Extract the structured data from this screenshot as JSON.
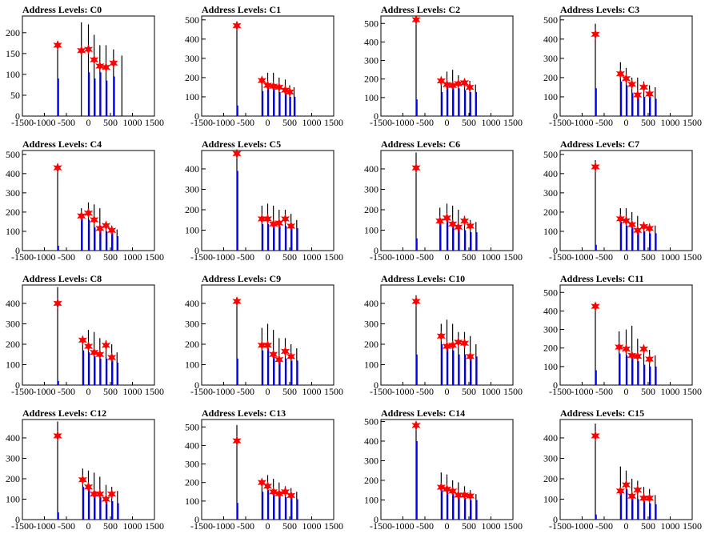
{
  "chart_data": [
    {
      "type": "bar",
      "title": "Address Levels: C0",
      "xlim": [
        -1500,
        1500
      ],
      "ylim": [
        0,
        240
      ],
      "yticks": [
        0,
        50,
        100,
        150,
        200
      ],
      "xticks": [
        -1500,
        -1000,
        -500,
        0,
        500,
        1000,
        1500
      ],
      "x": [
        -700,
        -160,
        0,
        130,
        260,
        400,
        570,
        760
      ],
      "black": [
        160,
        225,
        220,
        195,
        170,
        170,
        160,
        145
      ],
      "blue": [
        90,
        0,
        105,
        90,
        105,
        85,
        95,
        0
      ],
      "stars": [
        170,
        157,
        160,
        135,
        120,
        117,
        127
      ]
    },
    {
      "type": "bar",
      "title": "Address Levels: C1",
      "xlim": [
        -1500,
        1500
      ],
      "ylim": [
        0,
        520
      ],
      "yticks": [
        0,
        100,
        200,
        300,
        400,
        500
      ],
      "xticks": [
        -1500,
        -1000,
        -500,
        0,
        500,
        1000,
        1500
      ],
      "x": [
        -700,
        -130,
        0,
        130,
        260,
        400,
        500,
        600
      ],
      "black": [
        480,
        200,
        225,
        225,
        200,
        190,
        160,
        150
      ],
      "blue": [
        55,
        130,
        150,
        150,
        125,
        120,
        100,
        100
      ],
      "stars": [
        470,
        185,
        160,
        155,
        150,
        135,
        125
      ]
    },
    {
      "type": "bar",
      "title": "Address Levels: C2",
      "xlim": [
        -1500,
        1500
      ],
      "ylim": [
        0,
        540
      ],
      "yticks": [
        0,
        100,
        200,
        300,
        400,
        500
      ],
      "xticks": [
        -1500,
        -1000,
        -500,
        0,
        500,
        1000,
        1500
      ],
      "x": [
        -700,
        -130,
        0,
        130,
        260,
        400,
        520,
        650
      ],
      "black": [
        530,
        200,
        240,
        250,
        220,
        200,
        190,
        170
      ],
      "blue": [
        90,
        130,
        160,
        150,
        150,
        140,
        130,
        130
      ],
      "stars": [
        520,
        190,
        170,
        165,
        175,
        180,
        155
      ]
    },
    {
      "type": "bar",
      "title": "Address Levels: C3",
      "xlim": [
        -1500,
        1500
      ],
      "ylim": [
        0,
        520
      ],
      "yticks": [
        0,
        100,
        200,
        300,
        400,
        500
      ],
      "xticks": [
        -1500,
        -1000,
        -500,
        0,
        500,
        1000,
        1500
      ],
      "x": [
        -700,
        -130,
        0,
        130,
        260,
        400,
        530,
        660
      ],
      "black": [
        480,
        280,
        250,
        200,
        200,
        180,
        160,
        150
      ],
      "blue": [
        145,
        180,
        160,
        120,
        110,
        100,
        100,
        90
      ],
      "stars": [
        425,
        220,
        195,
        165,
        110,
        150,
        115
      ]
    },
    {
      "type": "bar",
      "title": "Address Levels: C4",
      "xlim": [
        -1500,
        1500
      ],
      "ylim": [
        0,
        520
      ],
      "yticks": [
        0,
        100,
        200,
        300,
        400,
        500
      ],
      "xticks": [
        -1500,
        -1000,
        -500,
        0,
        500,
        1000,
        1500
      ],
      "x": [
        -700,
        -160,
        0,
        130,
        260,
        400,
        530,
        650
      ],
      "black": [
        440,
        220,
        250,
        240,
        220,
        140,
        130,
        110
      ],
      "blue": [
        25,
        170,
        160,
        120,
        130,
        100,
        90,
        75
      ],
      "stars": [
        430,
        180,
        195,
        160,
        115,
        130,
        105
      ]
    },
    {
      "type": "bar",
      "title": "Address Levels: C5",
      "xlim": [
        -1500,
        1500
      ],
      "ylim": [
        0,
        490
      ],
      "yticks": [
        0,
        100,
        200,
        300,
        400
      ],
      "xticks": [
        -1500,
        -1000,
        -500,
        0,
        500,
        1000,
        1500
      ],
      "x": [
        -700,
        -130,
        0,
        130,
        260,
        400,
        530,
        660
      ],
      "black": [
        470,
        220,
        230,
        220,
        200,
        200,
        180,
        150
      ],
      "blue": [
        390,
        130,
        130,
        120,
        120,
        120,
        110,
        110
      ],
      "stars": [
        475,
        155,
        155,
        130,
        135,
        155,
        120
      ]
    },
    {
      "type": "bar",
      "title": "Address Levels: C6",
      "xlim": [
        -1500,
        1500
      ],
      "ylim": [
        0,
        490
      ],
      "yticks": [
        0,
        100,
        200,
        300,
        400
      ],
      "xticks": [
        -1500,
        -1000,
        -500,
        0,
        500,
        1000,
        1500
      ],
      "x": [
        -700,
        -160,
        0,
        130,
        260,
        400,
        530,
        660
      ],
      "black": [
        480,
        210,
        230,
        220,
        200,
        170,
        150,
        140
      ],
      "blue": [
        60,
        140,
        160,
        140,
        110,
        100,
        90,
        90
      ],
      "stars": [
        405,
        145,
        160,
        130,
        115,
        145,
        120
      ]
    },
    {
      "type": "bar",
      "title": "Address Levels: C7",
      "xlim": [
        -1500,
        1500
      ],
      "ylim": [
        0,
        520
      ],
      "yticks": [
        0,
        100,
        200,
        300,
        400,
        500
      ],
      "xticks": [
        -1500,
        -1000,
        -500,
        0,
        500,
        1000,
        1500
      ],
      "x": [
        -700,
        -130,
        0,
        130,
        260,
        400,
        530,
        660
      ],
      "black": [
        470,
        220,
        220,
        200,
        180,
        150,
        140,
        130
      ],
      "blue": [
        30,
        150,
        130,
        120,
        100,
        100,
        90,
        90
      ],
      "stars": [
        435,
        165,
        155,
        135,
        105,
        125,
        115
      ]
    },
    {
      "type": "bar",
      "title": "Address Levels: C8",
      "xlim": [
        -1500,
        1500
      ],
      "ylim": [
        0,
        490
      ],
      "yticks": [
        0,
        100,
        200,
        300,
        400
      ],
      "xticks": [
        -1500,
        -1000,
        -500,
        0,
        500,
        1000,
        1500
      ],
      "x": [
        -700,
        -130,
        0,
        130,
        260,
        400,
        530,
        650
      ],
      "black": [
        480,
        230,
        270,
        260,
        230,
        220,
        200,
        160
      ],
      "blue": [
        20,
        170,
        160,
        140,
        130,
        130,
        120,
        110
      ],
      "stars": [
        400,
        220,
        190,
        160,
        150,
        195,
        135
      ]
    },
    {
      "type": "bar",
      "title": "Address Levels: C9",
      "xlim": [
        -1500,
        1500
      ],
      "ylim": [
        0,
        490
      ],
      "yticks": [
        0,
        100,
        200,
        300,
        400
      ],
      "xticks": [
        -1500,
        -1000,
        -500,
        0,
        500,
        1000,
        1500
      ],
      "x": [
        -700,
        -130,
        0,
        130,
        260,
        400,
        530,
        660
      ],
      "black": [
        430,
        280,
        300,
        270,
        230,
        230,
        200,
        180
      ],
      "blue": [
        130,
        170,
        180,
        150,
        130,
        130,
        120,
        120
      ],
      "stars": [
        410,
        195,
        195,
        150,
        125,
        165,
        140
      ]
    },
    {
      "type": "bar",
      "title": "Address Levels: C10",
      "xlim": [
        -1500,
        1500
      ],
      "ylim": [
        0,
        490
      ],
      "yticks": [
        0,
        100,
        200,
        300,
        400
      ],
      "xticks": [
        -1500,
        -1000,
        -500,
        0,
        500,
        1000,
        1500
      ],
      "x": [
        -700,
        -130,
        0,
        130,
        260,
        400,
        530,
        660
      ],
      "black": [
        440,
        300,
        320,
        300,
        260,
        260,
        240,
        200
      ],
      "blue": [
        150,
        200,
        200,
        170,
        150,
        150,
        140,
        140
      ],
      "stars": [
        410,
        240,
        190,
        195,
        210,
        205,
        140
      ]
    },
    {
      "type": "bar",
      "title": "Address Levels: C11",
      "xlim": [
        -1500,
        1500
      ],
      "ylim": [
        0,
        540
      ],
      "yticks": [
        0,
        100,
        200,
        300,
        400,
        500
      ],
      "xticks": [
        -1500,
        -1000,
        -500,
        0,
        500,
        1000,
        1500
      ],
      "x": [
        -700,
        -160,
        0,
        130,
        260,
        400,
        530,
        660
      ],
      "black": [
        440,
        290,
        300,
        320,
        250,
        200,
        190,
        160
      ],
      "blue": [
        80,
        170,
        160,
        160,
        130,
        110,
        100,
        100
      ],
      "stars": [
        425,
        205,
        195,
        160,
        155,
        195,
        140
      ]
    },
    {
      "type": "bar",
      "title": "Address Levels: C12",
      "xlim": [
        -1500,
        1500
      ],
      "ylim": [
        0,
        490
      ],
      "yticks": [
        0,
        100,
        200,
        300,
        400
      ],
      "xticks": [
        -1500,
        -1000,
        -500,
        0,
        500,
        1000,
        1500
      ],
      "x": [
        -700,
        -130,
        0,
        130,
        260,
        400,
        530,
        660
      ],
      "black": [
        480,
        250,
        240,
        230,
        210,
        170,
        160,
        140
      ],
      "blue": [
        35,
        160,
        150,
        140,
        110,
        100,
        90,
        80
      ],
      "stars": [
        410,
        195,
        160,
        125,
        125,
        100,
        125
      ]
    },
    {
      "type": "bar",
      "title": "Address Levels: C13",
      "xlim": [
        -1500,
        1500
      ],
      "ylim": [
        0,
        540
      ],
      "yticks": [
        0,
        100,
        200,
        300,
        400,
        500
      ],
      "xticks": [
        -1500,
        -1000,
        -500,
        0,
        500,
        1000,
        1500
      ],
      "x": [
        -700,
        -130,
        0,
        130,
        260,
        400,
        530,
        660
      ],
      "black": [
        510,
        220,
        240,
        220,
        200,
        180,
        170,
        150
      ],
      "blue": [
        90,
        150,
        160,
        140,
        130,
        120,
        120,
        110
      ],
      "stars": [
        425,
        200,
        180,
        150,
        140,
        150,
        130
      ]
    },
    {
      "type": "bar",
      "title": "Address Levels: C14",
      "xlim": [
        -1500,
        1500
      ],
      "ylim": [
        0,
        510
      ],
      "yticks": [
        0,
        100,
        200,
        300,
        400,
        500
      ],
      "xticks": [
        -1500,
        -1000,
        -500,
        0,
        500,
        1000,
        1500
      ],
      "x": [
        -700,
        -130,
        0,
        130,
        260,
        400,
        530,
        660
      ],
      "black": [
        500,
        240,
        230,
        200,
        190,
        170,
        150,
        130
      ],
      "blue": [
        400,
        150,
        150,
        130,
        120,
        110,
        100,
        100
      ],
      "stars": [
        480,
        165,
        155,
        145,
        125,
        125,
        120
      ]
    },
    {
      "type": "bar",
      "title": "Address Levels: C15",
      "xlim": [
        -1500,
        1500
      ],
      "ylim": [
        0,
        490
      ],
      "yticks": [
        0,
        100,
        200,
        300,
        400
      ],
      "xticks": [
        -1500,
        -1000,
        -500,
        0,
        500,
        1000,
        1500
      ],
      "x": [
        -700,
        -130,
        0,
        130,
        260,
        400,
        530,
        660
      ],
      "black": [
        470,
        260,
        240,
        200,
        190,
        160,
        150,
        120
      ],
      "blue": [
        25,
        150,
        150,
        110,
        100,
        90,
        80,
        75
      ],
      "stars": [
        410,
        140,
        170,
        115,
        145,
        105,
        105
      ]
    }
  ],
  "colors": {
    "impulse_black": "#000000",
    "impulse_blue": "#0000ff",
    "star": "#ff0000",
    "axis": "#000000"
  }
}
